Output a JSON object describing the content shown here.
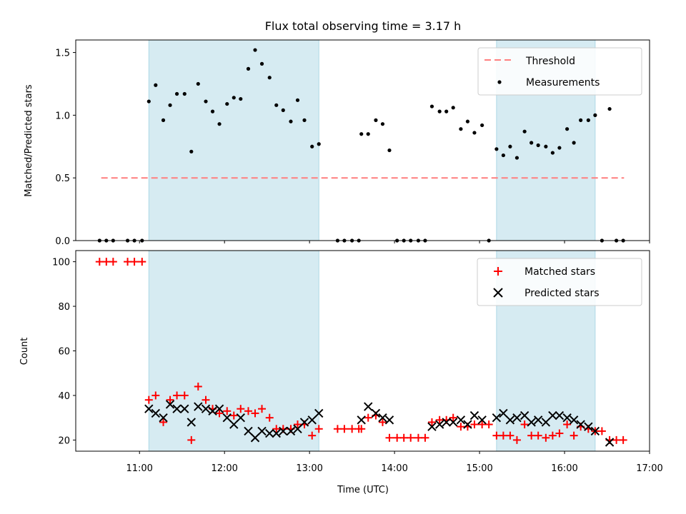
{
  "title": "Flux total observing time = 3.17 h",
  "colors": {
    "shade": "#add8e6",
    "threshold": "#ff7f7f",
    "measurement": "#000000",
    "matched": "#ff0000",
    "predicted": "#000000"
  },
  "chart_data": [
    {
      "type": "scatter",
      "panel": "top",
      "xlabel": "",
      "ylabel": "Matched/Predicted stars",
      "xlim": [
        10.25,
        17.0
      ],
      "ylim": [
        0,
        1.6
      ],
      "yticks": [
        0.0,
        0.5,
        1.0,
        1.5
      ],
      "ytick_labels": [
        "0.0",
        "0.5",
        "1.0",
        "1.5"
      ],
      "shaded_regions": [
        [
          11.11,
          13.11
        ],
        [
          15.2,
          16.36
        ]
      ],
      "legend": {
        "position": "upper right",
        "entries": [
          "Threshold",
          "Measurements"
        ]
      },
      "threshold": {
        "name": "Threshold",
        "value": 0.5,
        "x_range": [
          10.55,
          16.7
        ]
      },
      "series": [
        {
          "name": "Measurements",
          "points": [
            [
              10.53,
              0
            ],
            [
              10.61,
              0
            ],
            [
              10.69,
              0
            ],
            [
              10.86,
              0
            ],
            [
              10.94,
              0
            ],
            [
              11.03,
              0
            ],
            [
              11.11,
              1.11
            ],
            [
              11.19,
              1.24
            ],
            [
              11.28,
              0.96
            ],
            [
              11.36,
              1.08
            ],
            [
              11.44,
              1.17
            ],
            [
              11.53,
              1.17
            ],
            [
              11.61,
              0.71
            ],
            [
              11.69,
              1.25
            ],
            [
              11.78,
              1.11
            ],
            [
              11.86,
              1.03
            ],
            [
              11.94,
              0.93
            ],
            [
              12.03,
              1.09
            ],
            [
              12.11,
              1.14
            ],
            [
              12.19,
              1.13
            ],
            [
              12.28,
              1.37
            ],
            [
              12.36,
              1.52
            ],
            [
              12.44,
              1.41
            ],
            [
              12.53,
              1.3
            ],
            [
              12.61,
              1.08
            ],
            [
              12.69,
              1.04
            ],
            [
              12.78,
              0.95
            ],
            [
              12.86,
              1.12
            ],
            [
              12.94,
              0.96
            ],
            [
              13.03,
              0.75
            ],
            [
              13.11,
              0.77
            ],
            [
              13.33,
              0
            ],
            [
              13.41,
              0
            ],
            [
              13.5,
              0
            ],
            [
              13.58,
              0
            ],
            [
              13.61,
              0.85
            ],
            [
              13.69,
              0.85
            ],
            [
              13.78,
              0.96
            ],
            [
              13.86,
              0.93
            ],
            [
              13.94,
              0.72
            ],
            [
              14.03,
              0
            ],
            [
              14.11,
              0
            ],
            [
              14.19,
              0
            ],
            [
              14.28,
              0
            ],
            [
              14.36,
              0
            ],
            [
              14.44,
              1.07
            ],
            [
              14.53,
              1.03
            ],
            [
              14.61,
              1.03
            ],
            [
              14.69,
              1.06
            ],
            [
              14.78,
              0.89
            ],
            [
              14.86,
              0.95
            ],
            [
              14.94,
              0.86
            ],
            [
              15.03,
              0.92
            ],
            [
              15.11,
              0
            ],
            [
              15.2,
              0.73
            ],
            [
              15.28,
              0.68
            ],
            [
              15.36,
              0.75
            ],
            [
              15.44,
              0.66
            ],
            [
              15.53,
              0.87
            ],
            [
              15.61,
              0.78
            ],
            [
              15.69,
              0.76
            ],
            [
              15.78,
              0.75
            ],
            [
              15.86,
              0.7
            ],
            [
              15.94,
              0.74
            ],
            [
              16.03,
              0.89
            ],
            [
              16.11,
              0.78
            ],
            [
              16.19,
              0.96
            ],
            [
              16.28,
              0.96
            ],
            [
              16.36,
              1.0
            ],
            [
              16.44,
              0
            ],
            [
              16.53,
              1.05
            ],
            [
              16.61,
              0
            ],
            [
              16.69,
              0
            ]
          ]
        }
      ]
    },
    {
      "type": "scatter",
      "panel": "bottom",
      "xlabel": "Time (UTC)",
      "ylabel": "Count",
      "xlim": [
        10.25,
        17.0
      ],
      "ylim": [
        15,
        105
      ],
      "xticks": [
        11,
        12,
        13,
        14,
        15,
        16,
        17
      ],
      "xtick_labels": [
        "11:00",
        "12:00",
        "13:00",
        "14:00",
        "15:00",
        "16:00",
        "17:00"
      ],
      "yticks": [
        20,
        40,
        60,
        80,
        100
      ],
      "ytick_labels": [
        "20",
        "40",
        "60",
        "80",
        "100"
      ],
      "shaded_regions": [
        [
          11.11,
          13.11
        ],
        [
          15.2,
          16.36
        ]
      ],
      "legend": {
        "position": "upper right",
        "entries": [
          "Matched stars",
          "Predicted stars"
        ]
      },
      "series": [
        {
          "name": "Matched stars",
          "marker": "plus",
          "points": [
            [
              10.53,
              100
            ],
            [
              10.61,
              100
            ],
            [
              10.69,
              100
            ],
            [
              10.86,
              100
            ],
            [
              10.94,
              100
            ],
            [
              11.03,
              100
            ],
            [
              11.11,
              38
            ],
            [
              11.19,
              40
            ],
            [
              11.28,
              28
            ],
            [
              11.36,
              38
            ],
            [
              11.44,
              40
            ],
            [
              11.53,
              40
            ],
            [
              11.61,
              20
            ],
            [
              11.69,
              44
            ],
            [
              11.78,
              38
            ],
            [
              11.86,
              34
            ],
            [
              11.94,
              32
            ],
            [
              12.03,
              33
            ],
            [
              12.11,
              31
            ],
            [
              12.19,
              34
            ],
            [
              12.28,
              33
            ],
            [
              12.36,
              32
            ],
            [
              12.44,
              34
            ],
            [
              12.53,
              30
            ],
            [
              12.61,
              25
            ],
            [
              12.69,
              25
            ],
            [
              12.78,
              25
            ],
            [
              12.86,
              27
            ],
            [
              12.94,
              27
            ],
            [
              13.03,
              22
            ],
            [
              13.11,
              25
            ],
            [
              13.33,
              25
            ],
            [
              13.41,
              25
            ],
            [
              13.5,
              25
            ],
            [
              13.58,
              25
            ],
            [
              13.61,
              25
            ],
            [
              13.69,
              30
            ],
            [
              13.78,
              31
            ],
            [
              13.86,
              28
            ],
            [
              13.94,
              21
            ],
            [
              14.03,
              21
            ],
            [
              14.11,
              21
            ],
            [
              14.19,
              21
            ],
            [
              14.28,
              21
            ],
            [
              14.36,
              21
            ],
            [
              14.44,
              28
            ],
            [
              14.53,
              29
            ],
            [
              14.61,
              29
            ],
            [
              14.69,
              30
            ],
            [
              14.78,
              26
            ],
            [
              14.86,
              26
            ],
            [
              14.94,
              27
            ],
            [
              15.03,
              27
            ],
            [
              15.11,
              27
            ],
            [
              15.2,
              22
            ],
            [
              15.28,
              22
            ],
            [
              15.36,
              22
            ],
            [
              15.44,
              20
            ],
            [
              15.53,
              27
            ],
            [
              15.61,
              22
            ],
            [
              15.69,
              22
            ],
            [
              15.78,
              21
            ],
            [
              15.86,
              22
            ],
            [
              15.94,
              23
            ],
            [
              16.03,
              27
            ],
            [
              16.11,
              22
            ],
            [
              16.19,
              26
            ],
            [
              16.28,
              25
            ],
            [
              16.36,
              24
            ],
            [
              16.44,
              24
            ],
            [
              16.53,
              20
            ],
            [
              16.61,
              20
            ],
            [
              16.69,
              20
            ]
          ]
        },
        {
          "name": "Predicted stars",
          "marker": "x",
          "points": [
            [
              11.11,
              34
            ],
            [
              11.19,
              32
            ],
            [
              11.28,
              30
            ],
            [
              11.36,
              36
            ],
            [
              11.44,
              34
            ],
            [
              11.53,
              34
            ],
            [
              11.61,
              28
            ],
            [
              11.69,
              35
            ],
            [
              11.78,
              34
            ],
            [
              11.86,
              33
            ],
            [
              11.94,
              34
            ],
            [
              12.03,
              30
            ],
            [
              12.11,
              27
            ],
            [
              12.19,
              30
            ],
            [
              12.28,
              24
            ],
            [
              12.36,
              21
            ],
            [
              12.44,
              24
            ],
            [
              12.53,
              23
            ],
            [
              12.61,
              23
            ],
            [
              12.69,
              24
            ],
            [
              12.78,
              24
            ],
            [
              12.86,
              25
            ],
            [
              12.94,
              28
            ],
            [
              13.03,
              29
            ],
            [
              13.11,
              32
            ],
            [
              13.61,
              29
            ],
            [
              13.69,
              35
            ],
            [
              13.78,
              32
            ],
            [
              13.86,
              30
            ],
            [
              13.94,
              29
            ],
            [
              14.44,
              26
            ],
            [
              14.53,
              27
            ],
            [
              14.61,
              28
            ],
            [
              14.69,
              28
            ],
            [
              14.78,
              29
            ],
            [
              14.86,
              27
            ],
            [
              14.94,
              31
            ],
            [
              15.03,
              29
            ],
            [
              15.2,
              30
            ],
            [
              15.28,
              32
            ],
            [
              15.36,
              29
            ],
            [
              15.44,
              30
            ],
            [
              15.53,
              31
            ],
            [
              15.61,
              28
            ],
            [
              15.69,
              29
            ],
            [
              15.78,
              28
            ],
            [
              15.86,
              31
            ],
            [
              15.94,
              31
            ],
            [
              16.03,
              30
            ],
            [
              16.11,
              29
            ],
            [
              16.19,
              27
            ],
            [
              16.28,
              26
            ],
            [
              16.36,
              24
            ],
            [
              16.53,
              19
            ]
          ]
        }
      ]
    }
  ]
}
